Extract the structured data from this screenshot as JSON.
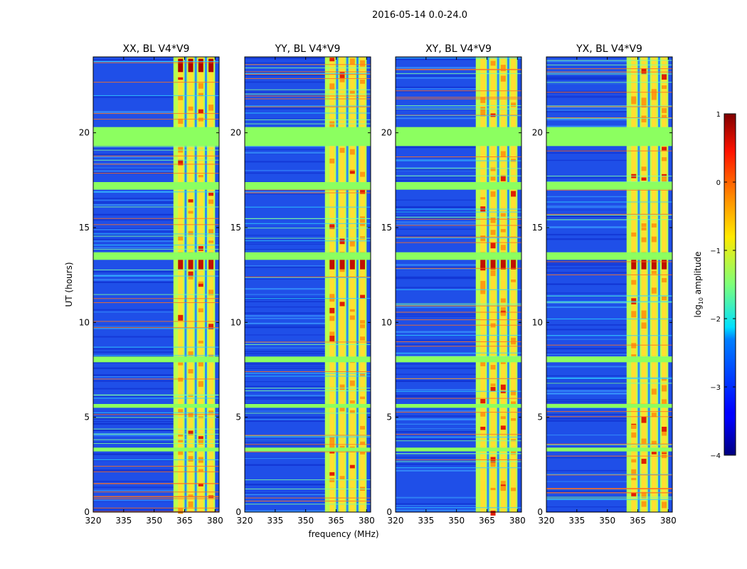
{
  "figure": {
    "suptitle": "2016-05-14 0.0-24.0",
    "xlabel": "frequency (MHz)",
    "ylabel": "UT (hours)"
  },
  "chart_data": {
    "type": "heatmap",
    "title": "2016-05-14 0.0-24.0",
    "xlabel": "frequency (MHz)",
    "ylabel": "UT (hours)",
    "xlim": [
      320,
      382
    ],
    "ylim": [
      0,
      24
    ],
    "xticks": [
      320,
      335,
      350,
      365,
      380
    ],
    "yticks": [
      0,
      5,
      10,
      15,
      20
    ],
    "panels": [
      {
        "title": "XX, BL V4*V9"
      },
      {
        "title": "YY, BL V4*V9"
      },
      {
        "title": "XY, BL V4*V9"
      },
      {
        "title": "YX, BL V4*V9"
      }
    ],
    "colorbar": {
      "label": "log",
      "label_sub": "10",
      "label_suffix": " amplitude",
      "range": [
        -4,
        1
      ],
      "ticks": [
        1,
        0,
        -1,
        -2,
        -3,
        -4
      ],
      "tick_labels": [
        "1",
        "0",
        "−1",
        "−2",
        "−3",
        "−4"
      ],
      "colormap": "jet"
    },
    "rfi_band_mhz": [
      359.5,
      380
    ],
    "rfi_channels_mhz": [
      363,
      368,
      373,
      378
    ],
    "flagged_time_bands_h": [
      [
        19.3,
        20.3
      ],
      [
        17.0,
        17.4
      ],
      [
        13.3,
        13.7
      ],
      [
        7.9,
        8.2
      ],
      [
        5.5,
        5.7
      ],
      [
        3.2,
        3.4
      ]
    ]
  }
}
